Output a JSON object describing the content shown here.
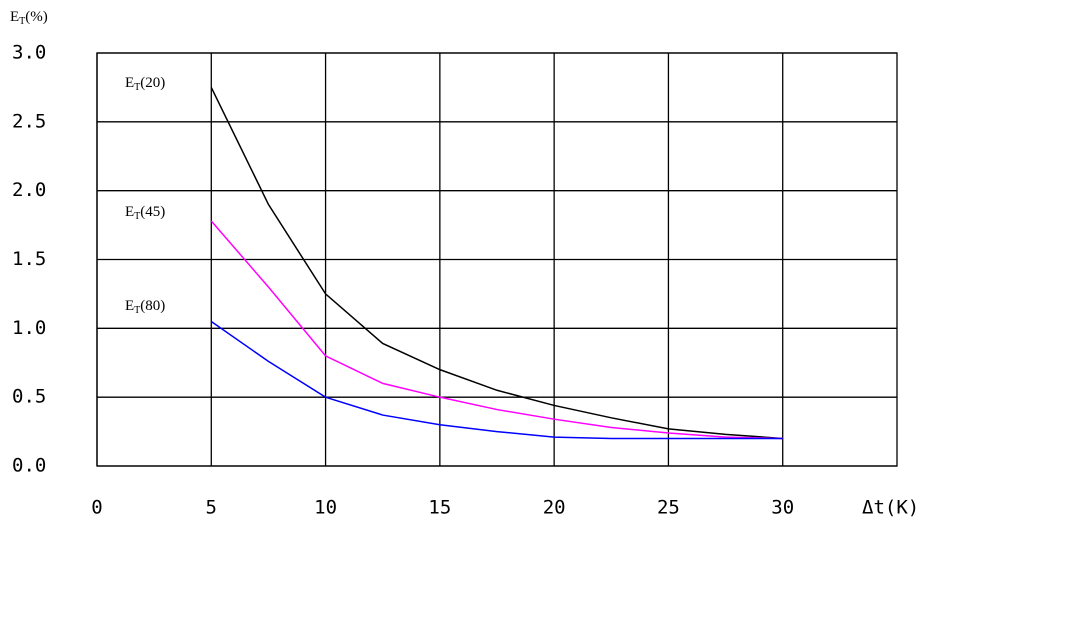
{
  "chart_data": {
    "type": "line",
    "y_label": "ET(%)",
    "x_label": "Δt(K)",
    "x": [
      5,
      7.5,
      10,
      12.5,
      15,
      17.5,
      20,
      22.5,
      25,
      27.5,
      30
    ],
    "series": [
      {
        "name": "ET(20)",
        "color": "#000000",
        "values": [
          2.75,
          1.9,
          1.25,
          0.89,
          0.7,
          0.55,
          0.44,
          0.35,
          0.27,
          0.23,
          0.2
        ]
      },
      {
        "name": "ET(45)",
        "color": "#ff00ff",
        "values": [
          1.78,
          1.3,
          0.8,
          0.6,
          0.5,
          0.41,
          0.34,
          0.28,
          0.24,
          0.21,
          0.2
        ]
      },
      {
        "name": "ET(80)",
        "color": "#0000ff",
        "values": [
          1.05,
          0.76,
          0.5,
          0.37,
          0.3,
          0.25,
          0.21,
          0.2,
          0.2,
          0.2,
          0.2
        ]
      }
    ],
    "xlim": [
      0,
      35
    ],
    "xticks": [
      0,
      5,
      10,
      15,
      20,
      25,
      30
    ],
    "ylim": [
      0,
      3
    ],
    "yticks": [
      {
        "value": 0,
        "label": "0.0"
      },
      {
        "value": 0.5,
        "label": "0.5"
      },
      {
        "value": 1,
        "label": "1.0"
      },
      {
        "value": 1.5,
        "label": "1.5"
      },
      {
        "value": 2,
        "label": "2.0"
      },
      {
        "value": 2.5,
        "label": "2.5"
      },
      {
        "value": 3,
        "label": "3.0"
      }
    ],
    "grid": true
  }
}
